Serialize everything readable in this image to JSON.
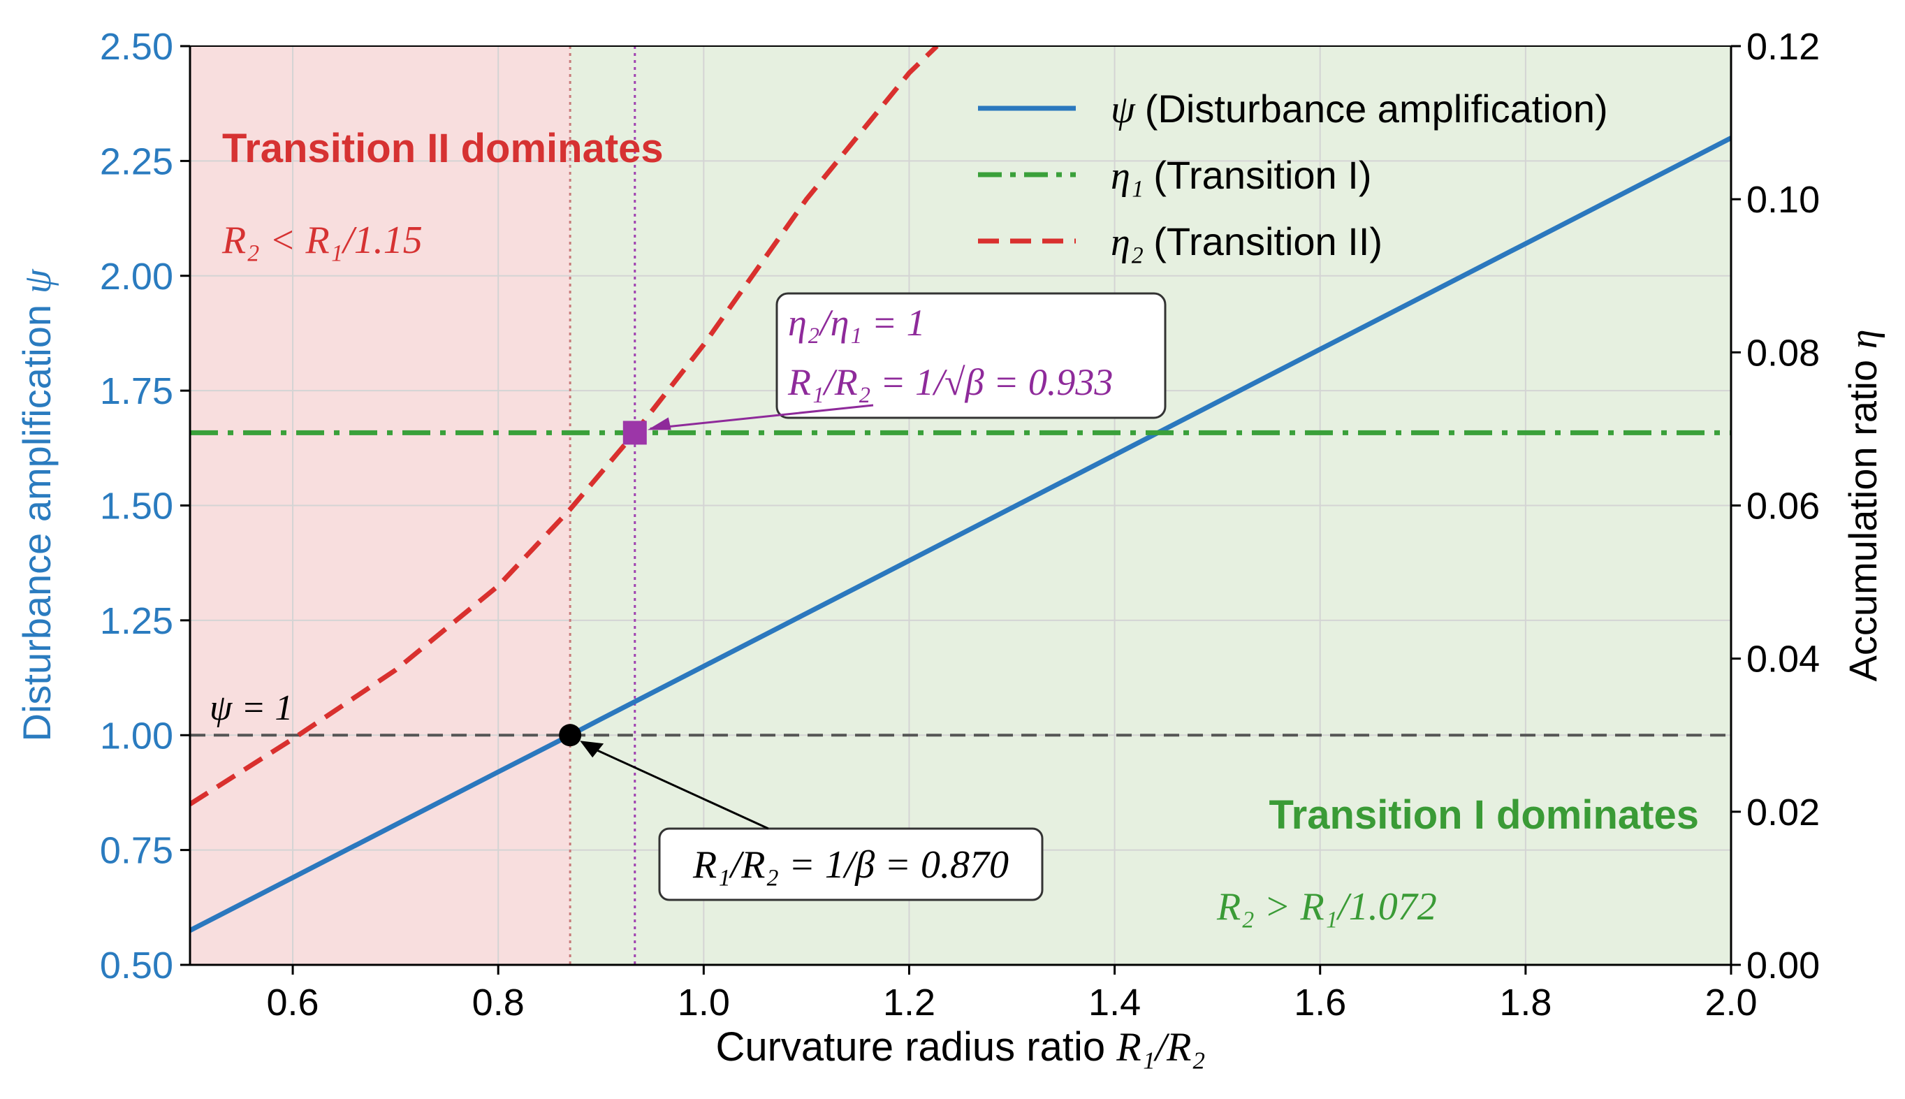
{
  "chart_data": {
    "type": "line",
    "x_axis": {
      "label_prefix": "Curvature radius ratio ",
      "label_math": "R₁/R₂",
      "range": [
        0.5,
        2.0
      ],
      "ticks": [
        0.6,
        0.8,
        1.0,
        1.2,
        1.4,
        1.6,
        1.8,
        2.0
      ],
      "tick_labels": [
        "0.6",
        "0.8",
        "1.0",
        "1.2",
        "1.4",
        "1.6",
        "1.8",
        "2.0"
      ]
    },
    "y_left": {
      "label": "Disturbance amplification",
      "label_symbol": "ψ",
      "range": [
        0.5,
        2.5
      ],
      "ticks": [
        0.5,
        0.75,
        1.0,
        1.25,
        1.5,
        1.75,
        2.0,
        2.25,
        2.5
      ],
      "tick_labels": [
        "0.50",
        "0.75",
        "1.00",
        "1.25",
        "1.50",
        "1.75",
        "2.00",
        "2.25",
        "2.50"
      ],
      "color": "#2a7bbf"
    },
    "y_right": {
      "label": "Accumulation ratio",
      "label_symbol": "η",
      "range": [
        0.0,
        0.12
      ],
      "ticks": [
        0.0,
        0.02,
        0.04,
        0.06,
        0.08,
        0.1,
        0.12
      ],
      "tick_labels": [
        "0.00",
        "0.02",
        "0.04",
        "0.06",
        "0.08",
        "0.10",
        "0.12"
      ]
    },
    "series": [
      {
        "key": "psi",
        "symbol": "ψ",
        "name": "(Disturbance amplification)",
        "axis": "left",
        "style": "solid",
        "color": "#2b78be",
        "x": [
          0.5,
          0.6,
          0.7,
          0.8,
          0.87,
          0.9,
          1.0,
          1.2,
          1.4,
          1.6,
          1.8,
          2.0
        ],
        "y": [
          0.575,
          0.69,
          0.805,
          0.92,
          1.0,
          1.035,
          1.15,
          1.38,
          1.61,
          1.84,
          2.07,
          2.3
        ]
      },
      {
        "key": "eta1",
        "symbol": "η₁",
        "name": "(Transition I)",
        "axis": "right",
        "style": "dashdot",
        "color": "#3aa03a",
        "x": [
          0.5,
          2.0
        ],
        "y": [
          0.0695,
          0.0695
        ]
      },
      {
        "key": "eta2",
        "symbol": "η₂",
        "name": "(Transition II)",
        "axis": "right",
        "style": "dashed",
        "color": "#d9302e",
        "x": [
          0.5,
          0.6,
          0.7,
          0.8,
          0.87,
          0.933,
          1.0,
          1.1,
          1.2,
          1.227
        ],
        "y": [
          0.021,
          0.0295,
          0.0385,
          0.0495,
          0.0595,
          0.0695,
          0.081,
          0.1,
          0.1165,
          0.12
        ]
      }
    ],
    "reference_lines": {
      "psi_one": {
        "y": 1.0,
        "axis": "left",
        "label": "ψ = 1",
        "color": "#555555"
      },
      "x_beta": {
        "x": 0.87,
        "color": "#c87a7a"
      },
      "x_sqrt_beta": {
        "x": 0.933,
        "color": "#a040b0"
      }
    },
    "regions": [
      {
        "from": 0.5,
        "to": 0.87,
        "color": "#f8dede",
        "title": "Transition II dominates",
        "condition": "R₂ < R₁/1.15",
        "text_color": "#d63232"
      },
      {
        "from": 0.87,
        "to": 2.0,
        "color": "#e6f0e0",
        "title": "Transition I dominates",
        "condition": "R₂ > R₁/1.072",
        "text_color": "#3a9b36"
      }
    ],
    "markers": [
      {
        "key": "circle",
        "x": 0.87,
        "y": 1.0,
        "axis": "left",
        "shape": "circle",
        "color": "#000000"
      },
      {
        "key": "square",
        "x": 0.933,
        "y": 0.0695,
        "axis": "right",
        "shape": "square",
        "color": "#9c36a8"
      }
    ],
    "annotations": [
      {
        "key": "beta",
        "text": "R₁/R₂ = 1/β = 0.870",
        "color": "#000000"
      },
      {
        "key": "sqrtbeta_line1",
        "text": "η₂/η₁ = 1",
        "color": "#8e2a9a"
      },
      {
        "key": "sqrtbeta_line2",
        "text": "R₁/R₂ = 1/√β = 0.933",
        "color": "#8e2a9a"
      }
    ],
    "legend": {
      "position": "top-right"
    },
    "grid": true
  }
}
